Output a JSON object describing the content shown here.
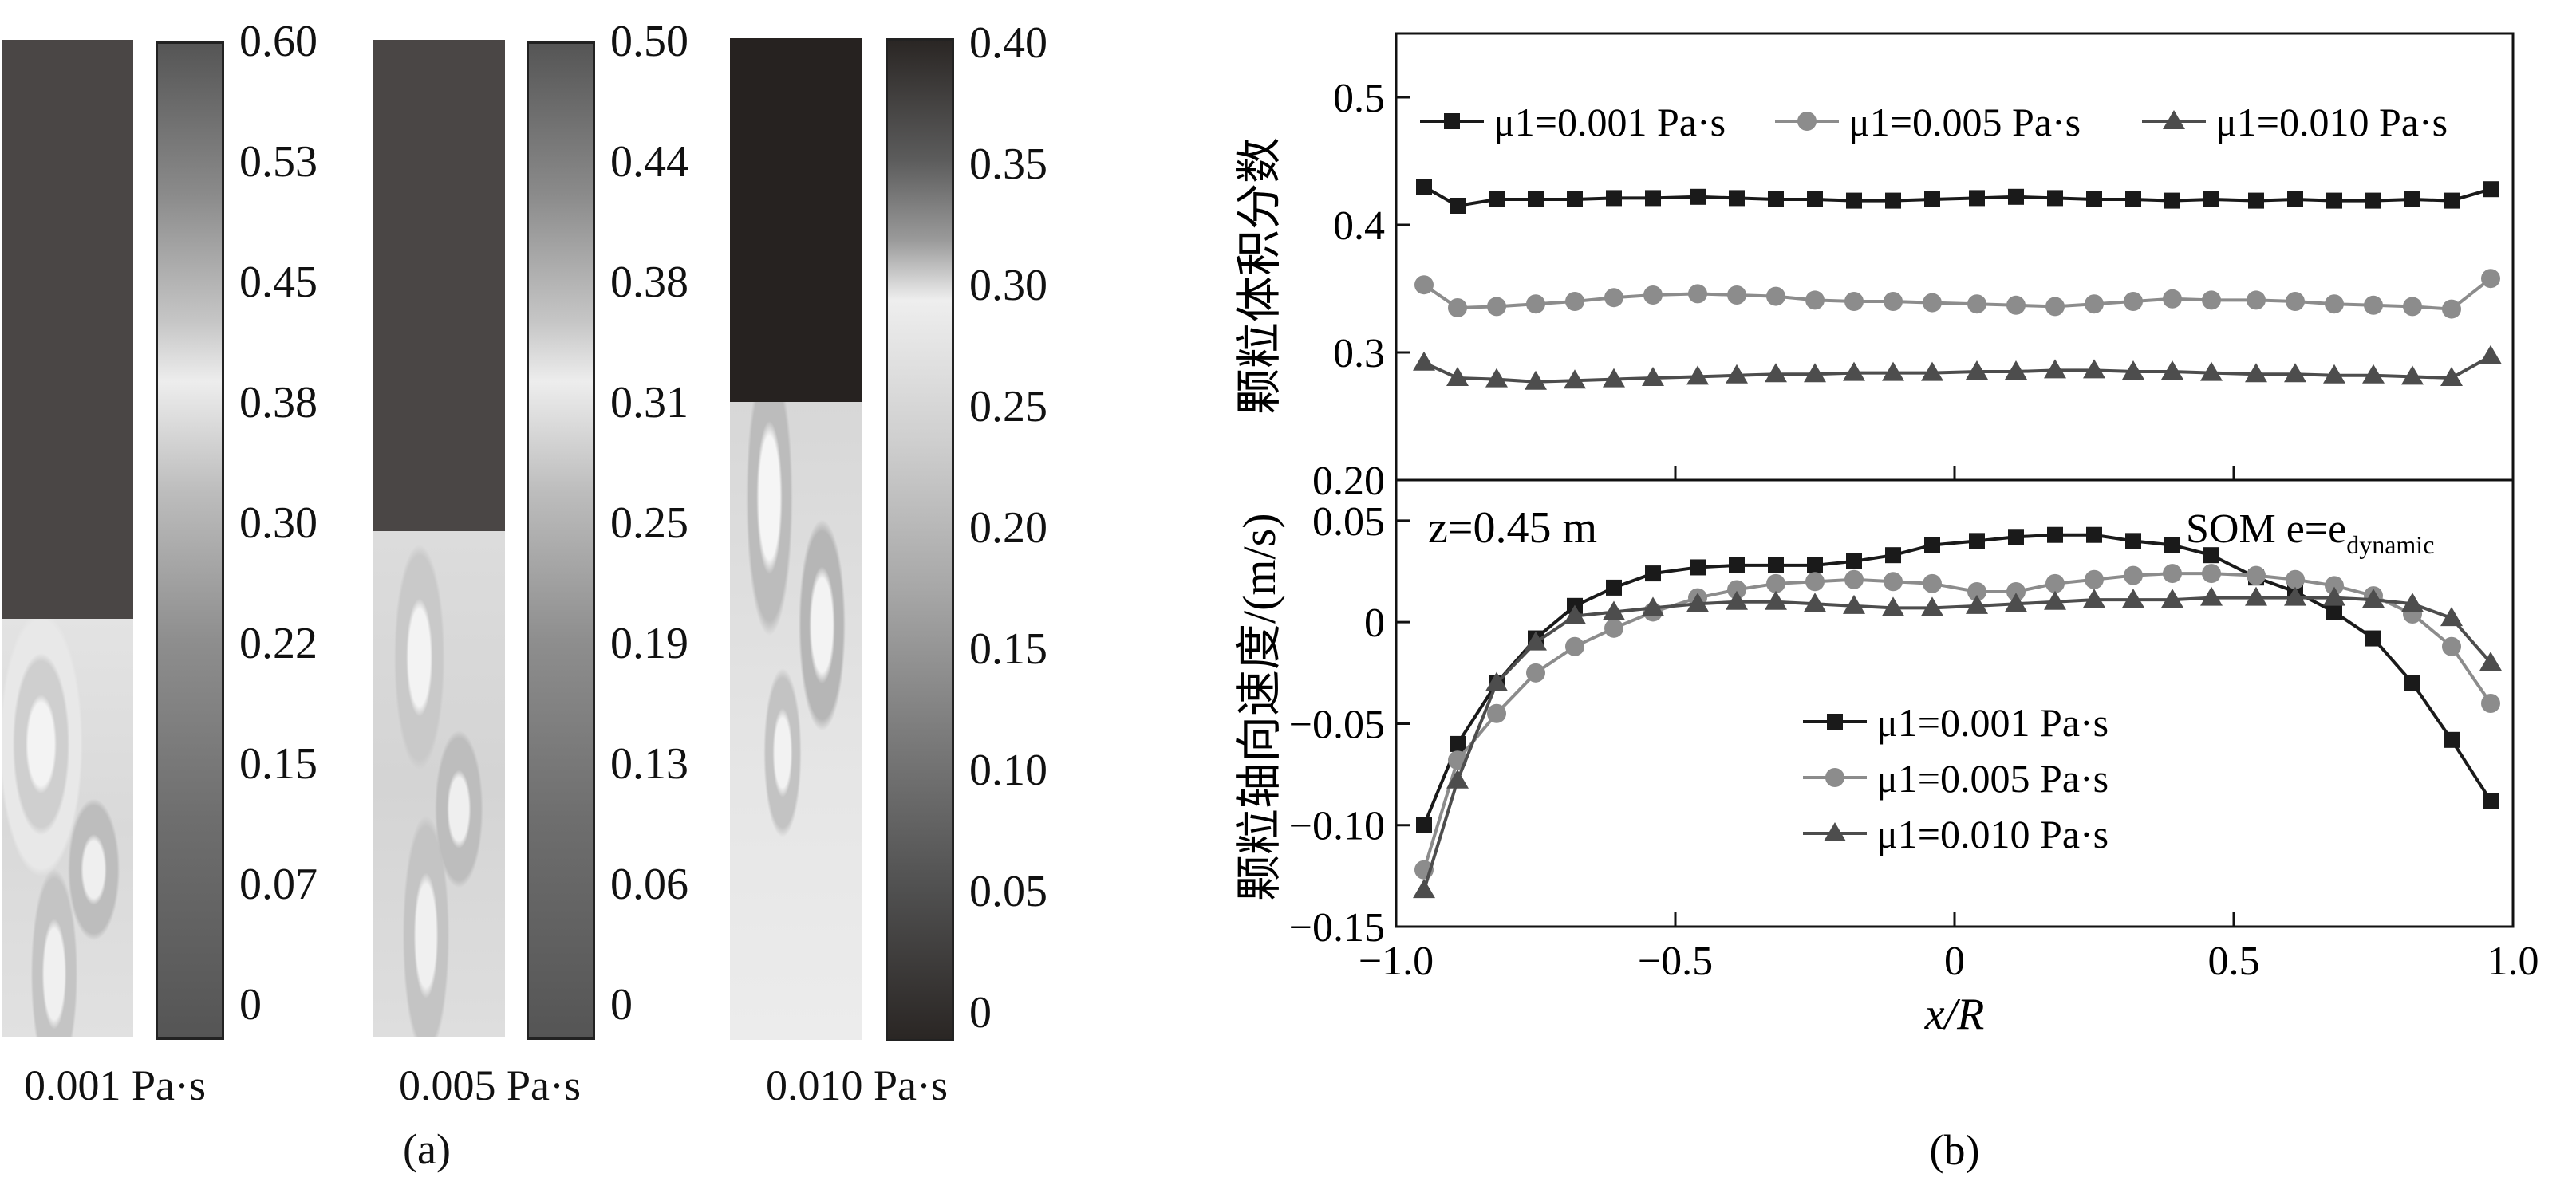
{
  "panel_a": {
    "label": "(a)",
    "contours": [
      {
        "caption": "0.001 Pa·s",
        "interface_fraction": 0.58,
        "ticks": [
          "0.60",
          "0.53",
          "0.45",
          "0.38",
          "0.30",
          "0.22",
          "0.15",
          "0.07",
          "0"
        ]
      },
      {
        "caption": "0.005 Pa·s",
        "interface_fraction": 0.48,
        "ticks": [
          "0.50",
          "0.44",
          "0.38",
          "0.31",
          "0.25",
          "0.19",
          "0.13",
          "0.06",
          "0"
        ]
      },
      {
        "caption": "0.010 Pa·s",
        "interface_fraction": 0.36,
        "ticks": [
          "0.40",
          "0.35",
          "0.30",
          "0.25",
          "0.20",
          "0.15",
          "0.10",
          "0.05",
          "0"
        ]
      }
    ]
  },
  "panel_b": {
    "label": "(b)",
    "annotation_left": "z=0.45 m",
    "annotation_right": "SOM e=e",
    "annotation_right_sub": "dynamic"
  },
  "chart_data": [
    {
      "type": "line",
      "ylabel": "颗粒体积分数",
      "xlabel": "",
      "xlim": [
        -1.0,
        1.0
      ],
      "ylim": [
        0.2,
        0.55
      ],
      "yticks": [
        "0.20",
        "0.3",
        "0.4",
        "0.5"
      ],
      "legend_position": "top",
      "x": [
        -0.95,
        -0.89,
        -0.82,
        -0.75,
        -0.68,
        -0.61,
        -0.54,
        -0.46,
        -0.39,
        -0.32,
        -0.25,
        -0.18,
        -0.11,
        -0.04,
        0.04,
        0.11,
        0.18,
        0.25,
        0.32,
        0.39,
        0.46,
        0.54,
        0.61,
        0.68,
        0.75,
        0.82,
        0.89,
        0.96
      ],
      "series": [
        {
          "name": "μ1=0.001 Pa·s",
          "color": "#1a1a1a",
          "marker": "square",
          "values": [
            0.43,
            0.415,
            0.42,
            0.42,
            0.42,
            0.421,
            0.421,
            0.422,
            0.421,
            0.42,
            0.42,
            0.419,
            0.419,
            0.42,
            0.421,
            0.422,
            0.421,
            0.42,
            0.42,
            0.419,
            0.42,
            0.419,
            0.42,
            0.419,
            0.419,
            0.42,
            0.419,
            0.428
          ]
        },
        {
          "name": "μ1=0.005 Pa·s",
          "color": "#8c8c8c",
          "marker": "circle",
          "values": [
            0.353,
            0.335,
            0.336,
            0.338,
            0.34,
            0.343,
            0.345,
            0.346,
            0.345,
            0.344,
            0.341,
            0.34,
            0.34,
            0.339,
            0.338,
            0.337,
            0.336,
            0.338,
            0.34,
            0.342,
            0.341,
            0.341,
            0.34,
            0.338,
            0.337,
            0.336,
            0.334,
            0.358
          ]
        },
        {
          "name": "μ1=0.010 Pa·s",
          "color": "#4d4d4d",
          "marker": "triangle",
          "values": [
            0.292,
            0.28,
            0.279,
            0.277,
            0.278,
            0.279,
            0.28,
            0.281,
            0.282,
            0.283,
            0.283,
            0.284,
            0.284,
            0.284,
            0.285,
            0.285,
            0.286,
            0.286,
            0.285,
            0.285,
            0.284,
            0.283,
            0.283,
            0.282,
            0.282,
            0.281,
            0.28,
            0.297
          ]
        }
      ]
    },
    {
      "type": "line",
      "ylabel": "颗粒轴向速度/(m/s)",
      "xlabel": "x/R",
      "xlim": [
        -1.0,
        1.0
      ],
      "ylim": [
        -0.15,
        0.07
      ],
      "xticks": [
        "−1.0",
        "−0.5",
        "0",
        "0.5",
        "1.0"
      ],
      "yticks": [
        "−0.15",
        "−0.10",
        "−0.05",
        "0",
        "0.05"
      ],
      "legend_position": "bottom-center",
      "x": [
        -0.95,
        -0.89,
        -0.82,
        -0.75,
        -0.68,
        -0.61,
        -0.54,
        -0.46,
        -0.39,
        -0.32,
        -0.25,
        -0.18,
        -0.11,
        -0.04,
        0.04,
        0.11,
        0.18,
        0.25,
        0.32,
        0.39,
        0.46,
        0.54,
        0.61,
        0.68,
        0.75,
        0.82,
        0.89,
        0.96
      ],
      "series": [
        {
          "name": "μ1=0.001 Pa·s",
          "color": "#1a1a1a",
          "marker": "square",
          "values": [
            -0.1,
            -0.06,
            -0.03,
            -0.008,
            0.008,
            0.017,
            0.024,
            0.027,
            0.028,
            0.028,
            0.028,
            0.03,
            0.033,
            0.038,
            0.04,
            0.042,
            0.043,
            0.043,
            0.04,
            0.038,
            0.033,
            0.022,
            0.015,
            0.005,
            -0.008,
            -0.03,
            -0.058,
            -0.088
          ]
        },
        {
          "name": "μ1=0.005 Pa·s",
          "color": "#8c8c8c",
          "marker": "circle",
          "values": [
            -0.122,
            -0.068,
            -0.045,
            -0.025,
            -0.012,
            -0.003,
            0.005,
            0.012,
            0.016,
            0.019,
            0.02,
            0.021,
            0.02,
            0.019,
            0.015,
            0.015,
            0.019,
            0.021,
            0.023,
            0.024,
            0.024,
            0.023,
            0.021,
            0.018,
            0.013,
            0.004,
            -0.012,
            -0.04
          ]
        },
        {
          "name": "μ1=0.010 Pa·s",
          "color": "#4d4d4d",
          "marker": "triangle",
          "values": [
            -0.132,
            -0.078,
            -0.03,
            -0.01,
            0.003,
            0.005,
            0.007,
            0.009,
            0.01,
            0.01,
            0.009,
            0.008,
            0.007,
            0.007,
            0.008,
            0.009,
            0.01,
            0.011,
            0.011,
            0.011,
            0.012,
            0.012,
            0.012,
            0.012,
            0.011,
            0.009,
            0.002,
            -0.02
          ]
        }
      ]
    }
  ]
}
